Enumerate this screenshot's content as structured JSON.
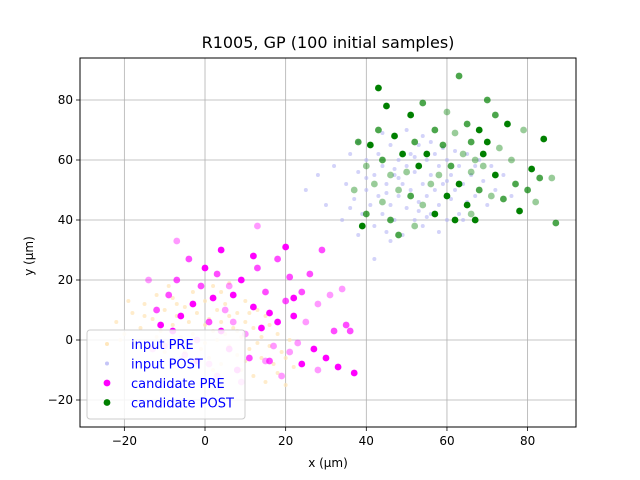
{
  "chart_data": {
    "type": "scatter",
    "title": "R1005, GP (100 initial samples)",
    "xlabel": "x (µm)",
    "ylabel": "y (µm)",
    "xlim": [
      -31,
      92
    ],
    "ylim": [
      -29,
      94
    ],
    "x_ticks": [
      -20,
      0,
      20,
      40,
      60,
      80
    ],
    "y_ticks": [
      -20,
      0,
      20,
      40,
      60,
      80
    ],
    "grid": true,
    "legend_position": "lower-left",
    "legend_text_color": "#0000ff",
    "series": [
      {
        "name": "input PRE",
        "color": "#ffe4b5",
        "alpha": 0.7,
        "size": "small",
        "points": [
          [
            -22,
            6
          ],
          [
            -20,
            2
          ],
          [
            -18,
            9
          ],
          [
            -16,
            4
          ],
          [
            -15,
            12
          ],
          [
            -14,
            -2
          ],
          [
            -13,
            7
          ],
          [
            -12,
            15
          ],
          [
            -11,
            3
          ],
          [
            -10,
            10
          ],
          [
            -9,
            -1
          ],
          [
            -8,
            5
          ],
          [
            -8,
            14
          ],
          [
            -7,
            8
          ],
          [
            -6,
            1
          ],
          [
            -5,
            11
          ],
          [
            -5,
            -4
          ],
          [
            -4,
            6
          ],
          [
            -3,
            16
          ],
          [
            -3,
            2
          ],
          [
            -2,
            9
          ],
          [
            -1,
            -3
          ],
          [
            0,
            5
          ],
          [
            0,
            13
          ],
          [
            1,
            7
          ],
          [
            1,
            -6
          ],
          [
            2,
            3
          ],
          [
            2,
            18
          ],
          [
            3,
            10
          ],
          [
            3,
            0
          ],
          [
            4,
            6
          ],
          [
            4,
            -8
          ],
          [
            5,
            12
          ],
          [
            5,
            2
          ],
          [
            6,
            8
          ],
          [
            6,
            -2
          ],
          [
            7,
            15
          ],
          [
            7,
            4
          ],
          [
            8,
            -5
          ],
          [
            8,
            9
          ],
          [
            9,
            1
          ],
          [
            9,
            -10
          ],
          [
            10,
            6
          ],
          [
            10,
            13
          ],
          [
            11,
            -3
          ],
          [
            12,
            4
          ],
          [
            12,
            -12
          ],
          [
            13,
            10
          ],
          [
            14,
            -6
          ],
          [
            14,
            1
          ],
          [
            15,
            -14
          ],
          [
            16,
            5
          ],
          [
            16,
            -2
          ],
          [
            17,
            -8
          ],
          [
            18,
            2
          ],
          [
            18,
            -11
          ],
          [
            19,
            -4
          ],
          [
            20,
            -15
          ],
          [
            21,
            0
          ],
          [
            22,
            -9
          ],
          [
            -17,
            -1
          ],
          [
            -12,
            1
          ],
          [
            -6,
            -6
          ],
          [
            0,
            -1
          ],
          [
            4,
            16
          ],
          [
            10,
            -7
          ],
          [
            -19,
            13
          ],
          [
            -9,
            18
          ],
          [
            6,
            19
          ],
          [
            13,
            -1
          ],
          [
            -15,
            8
          ],
          [
            -3,
            -7
          ],
          [
            8,
            3
          ],
          [
            15,
            8
          ],
          [
            -10,
            -4
          ],
          [
            2,
            -10
          ],
          [
            20,
            -6
          ],
          [
            -21,
            0
          ],
          [
            11,
            9
          ],
          [
            -7,
            12
          ]
        ]
      },
      {
        "name": "input POST",
        "color": "#b6b6f5",
        "alpha": 0.6,
        "size": "small",
        "points": [
          [
            25,
            50
          ],
          [
            28,
            55
          ],
          [
            30,
            45
          ],
          [
            32,
            58
          ],
          [
            34,
            40
          ],
          [
            35,
            52
          ],
          [
            36,
            62
          ],
          [
            37,
            47
          ],
          [
            38,
            35
          ],
          [
            38,
            56
          ],
          [
            39,
            42
          ],
          [
            40,
            60
          ],
          [
            40,
            50
          ],
          [
            41,
            45
          ],
          [
            41,
            65
          ],
          [
            42,
            38
          ],
          [
            42,
            55
          ],
          [
            43,
            48
          ],
          [
            43,
            62
          ],
          [
            44,
            42
          ],
          [
            44,
            58
          ],
          [
            45,
            52
          ],
          [
            45,
            36
          ],
          [
            46,
            65
          ],
          [
            46,
            45
          ],
          [
            47,
            55
          ],
          [
            47,
            40
          ],
          [
            48,
            60
          ],
          [
            48,
            48
          ],
          [
            49,
            35
          ],
          [
            49,
            52
          ],
          [
            50,
            58
          ],
          [
            50,
            44
          ],
          [
            51,
            62
          ],
          [
            51,
            50
          ],
          [
            52,
            40
          ],
          [
            52,
            56
          ],
          [
            53,
            46
          ],
          [
            53,
            65
          ],
          [
            54,
            52
          ],
          [
            54,
            38
          ],
          [
            55,
            60
          ],
          [
            55,
            48
          ],
          [
            56,
            55
          ],
          [
            56,
            42
          ],
          [
            57,
            62
          ],
          [
            57,
            50
          ],
          [
            58,
            45
          ],
          [
            58,
            58
          ],
          [
            59,
            52
          ],
          [
            60,
            40
          ],
          [
            60,
            60
          ],
          [
            61,
            55
          ],
          [
            61,
            47
          ],
          [
            62,
            63
          ],
          [
            62,
            50
          ],
          [
            63,
            42
          ],
          [
            63,
            58
          ],
          [
            64,
            52
          ],
          [
            65,
            46
          ],
          [
            65,
            62
          ],
          [
            66,
            55
          ],
          [
            67,
            48
          ],
          [
            68,
            60
          ],
          [
            69,
            53
          ],
          [
            70,
            45
          ],
          [
            71,
            58
          ],
          [
            72,
            50
          ],
          [
            74,
            55
          ],
          [
            76,
            48
          ],
          [
            42,
            27
          ],
          [
            46,
            33
          ],
          [
            50,
            70
          ],
          [
            54,
            68
          ],
          [
            58,
            36
          ],
          [
            38,
            66
          ],
          [
            36,
            44
          ],
          [
            44,
            69
          ],
          [
            60,
            53
          ],
          [
            52,
            61
          ],
          [
            48,
            54
          ],
          [
            56,
            66
          ],
          [
            64,
            40
          ],
          [
            40,
            54
          ],
          [
            47,
            57
          ],
          [
            53,
            43
          ],
          [
            59,
            64
          ],
          [
            67,
            58
          ],
          [
            45,
            49
          ],
          [
            55,
            41
          ]
        ]
      },
      {
        "name": "candidate PRE",
        "color": "#ff00ff",
        "size": "large",
        "points": [
          [
            -14,
            20
          ],
          [
            -12,
            10
          ],
          [
            -11,
            5
          ],
          [
            -10,
            -2
          ],
          [
            -9,
            15
          ],
          [
            -8,
            3
          ],
          [
            -7,
            33
          ],
          [
            -7,
            20
          ],
          [
            -6,
            8
          ],
          [
            -5,
            -5
          ],
          [
            -4,
            27
          ],
          [
            -3,
            12
          ],
          [
            -2,
            0
          ],
          [
            -1,
            18
          ],
          [
            0,
            24
          ],
          [
            1,
            -8
          ],
          [
            1,
            6
          ],
          [
            2,
            14
          ],
          [
            3,
            -12
          ],
          [
            3,
            22
          ],
          [
            4,
            3
          ],
          [
            5,
            10
          ],
          [
            6,
            -3
          ],
          [
            7,
            15
          ],
          [
            7,
            6
          ],
          [
            8,
            -10
          ],
          [
            9,
            20
          ],
          [
            10,
            2
          ],
          [
            11,
            -6
          ],
          [
            12,
            11
          ],
          [
            13,
            38
          ],
          [
            13,
            24
          ],
          [
            14,
            4
          ],
          [
            15,
            -7
          ],
          [
            15,
            16
          ],
          [
            16,
            9
          ],
          [
            17,
            -2
          ],
          [
            18,
            27
          ],
          [
            18,
            6
          ],
          [
            19,
            -12
          ],
          [
            20,
            13
          ],
          [
            20,
            31
          ],
          [
            21,
            -4
          ],
          [
            21,
            21
          ],
          [
            22,
            8
          ],
          [
            23,
            -1
          ],
          [
            24,
            16
          ],
          [
            24,
            -8
          ],
          [
            25,
            6
          ],
          [
            26,
            22
          ],
          [
            27,
            -3
          ],
          [
            28,
            12
          ],
          [
            29,
            30
          ],
          [
            30,
            -6
          ],
          [
            31,
            15
          ],
          [
            32,
            3
          ],
          [
            33,
            -9
          ],
          [
            34,
            17
          ],
          [
            35,
            5
          ],
          [
            37,
            -11
          ],
          [
            -13,
            -3
          ],
          [
            -2,
            -7
          ],
          [
            4,
            30
          ],
          [
            9,
            -14
          ],
          [
            16,
            -7
          ],
          [
            22,
            14
          ],
          [
            28,
            -10
          ],
          [
            36,
            3
          ],
          [
            12,
            28
          ],
          [
            6,
            18
          ]
        ]
      },
      {
        "name": "candidate POST",
        "color": "#008000",
        "size": "large",
        "points": [
          [
            37,
            50
          ],
          [
            38,
            66
          ],
          [
            39,
            38
          ],
          [
            40,
            58
          ],
          [
            40,
            42
          ],
          [
            41,
            65
          ],
          [
            42,
            52
          ],
          [
            43,
            70
          ],
          [
            43,
            84
          ],
          [
            44,
            46
          ],
          [
            44,
            60
          ],
          [
            45,
            78
          ],
          [
            46,
            55
          ],
          [
            46,
            40
          ],
          [
            47,
            68
          ],
          [
            48,
            50
          ],
          [
            48,
            35
          ],
          [
            49,
            62
          ],
          [
            50,
            56
          ],
          [
            51,
            48
          ],
          [
            51,
            75
          ],
          [
            52,
            38
          ],
          [
            52,
            66
          ],
          [
            53,
            58
          ],
          [
            54,
            45
          ],
          [
            54,
            79
          ],
          [
            55,
            62
          ],
          [
            56,
            52
          ],
          [
            57,
            70
          ],
          [
            57,
            42
          ],
          [
            58,
            55
          ],
          [
            59,
            65
          ],
          [
            60,
            48
          ],
          [
            60,
            76
          ],
          [
            61,
            58
          ],
          [
            62,
            40
          ],
          [
            62,
            69
          ],
          [
            63,
            88
          ],
          [
            63,
            52
          ],
          [
            64,
            62
          ],
          [
            65,
            72
          ],
          [
            65,
            45
          ],
          [
            66,
            56
          ],
          [
            66,
            66
          ],
          [
            67,
            40
          ],
          [
            67,
            60
          ],
          [
            68,
            50
          ],
          [
            68,
            70
          ],
          [
            69,
            58
          ],
          [
            70,
            80
          ],
          [
            70,
            66
          ],
          [
            71,
            48
          ],
          [
            72,
            75
          ],
          [
            72,
            55
          ],
          [
            73,
            64
          ],
          [
            74,
            47
          ],
          [
            75,
            72
          ],
          [
            76,
            60
          ],
          [
            77,
            52
          ],
          [
            78,
            43
          ],
          [
            79,
            70
          ],
          [
            80,
            50
          ],
          [
            81,
            57
          ],
          [
            82,
            46
          ],
          [
            83,
            54
          ],
          [
            84,
            67
          ],
          [
            86,
            54
          ],
          [
            87,
            39
          ],
          [
            69,
            62
          ],
          [
            66,
            42
          ]
        ]
      }
    ]
  }
}
